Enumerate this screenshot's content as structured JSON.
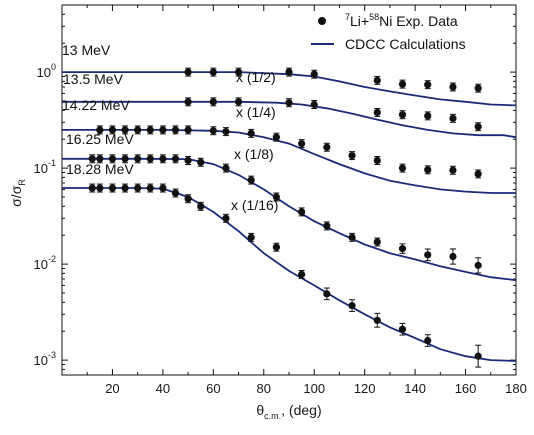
{
  "chart_data": {
    "type": "scatter",
    "xlabel": {
      "main": "θ",
      "sub": "c.m.",
      "suffix": ", (deg)"
    },
    "ylabel": {
      "main": "σ/σ",
      "sub": "R"
    },
    "xlim": [
      0,
      180
    ],
    "ylim": [
      0.0007,
      5
    ],
    "yscale": "log",
    "grid": false,
    "x_ticks": [
      "20",
      "40",
      "60",
      "80",
      "100",
      "120",
      "140",
      "160",
      "180"
    ],
    "y_ticks": [
      {
        "base": "10",
        "exp": "0"
      },
      {
        "base": "10",
        "exp": "-1"
      },
      {
        "base": "10",
        "exp": "-2"
      },
      {
        "base": "10",
        "exp": "-3"
      }
    ],
    "legend": {
      "position": "top-right",
      "entries": [
        {
          "kind": "marker",
          "parts": [
            {
              "t": "7",
              "sup": true
            },
            {
              "t": "Li+"
            },
            {
              "t": "58",
              "sup": true
            },
            {
              "t": "Ni Exp. Data"
            }
          ]
        },
        {
          "kind": "line",
          "parts": [
            {
              "t": "CDCC Calculations"
            }
          ]
        }
      ]
    },
    "series": [
      {
        "energy_label": "13 MeV",
        "scale_label": "",
        "points": [
          {
            "x": 50,
            "y": 1.0,
            "err": 0.1
          },
          {
            "x": 60,
            "y": 1.0,
            "err": 0.1
          },
          {
            "x": 70,
            "y": 1.0,
            "err": 0.1
          },
          {
            "x": 90,
            "y": 1.0,
            "err": 0.1
          },
          {
            "x": 100,
            "y": 0.95,
            "err": 0.1
          },
          {
            "x": 125,
            "y": 0.82,
            "err": 0.1
          },
          {
            "x": 135,
            "y": 0.75,
            "err": 0.1
          },
          {
            "x": 145,
            "y": 0.74,
            "err": 0.1
          },
          {
            "x": 155,
            "y": 0.7,
            "err": 0.1
          },
          {
            "x": 165,
            "y": 0.68,
            "err": 0.1
          }
        ],
        "curve": [
          [
            0,
            1.0
          ],
          [
            40,
            1.0
          ],
          [
            70,
            1.0
          ],
          [
            90,
            0.95
          ],
          [
            100,
            0.9
          ],
          [
            110,
            0.8
          ],
          [
            120,
            0.7
          ],
          [
            130,
            0.63
          ],
          [
            140,
            0.57
          ],
          [
            150,
            0.52
          ],
          [
            160,
            0.49
          ],
          [
            170,
            0.46
          ],
          [
            180,
            0.45
          ]
        ]
      },
      {
        "energy_label": "13.5 MeV",
        "scale_label": "x (1/2)",
        "points": [
          {
            "x": 50,
            "y": 0.49,
            "err": 0.1
          },
          {
            "x": 60,
            "y": 0.49,
            "err": 0.1
          },
          {
            "x": 70,
            "y": 0.49,
            "err": 0.1
          },
          {
            "x": 90,
            "y": 0.48,
            "err": 0.1
          },
          {
            "x": 100,
            "y": 0.46,
            "err": 0.1
          },
          {
            "x": 125,
            "y": 0.38,
            "err": 0.1
          },
          {
            "x": 135,
            "y": 0.36,
            "err": 0.1
          },
          {
            "x": 145,
            "y": 0.35,
            "err": 0.1
          },
          {
            "x": 155,
            "y": 0.33,
            "err": 0.1
          },
          {
            "x": 165,
            "y": 0.27,
            "err": 0.1
          }
        ],
        "curve": [
          [
            0,
            0.49
          ],
          [
            40,
            0.49
          ],
          [
            70,
            0.49
          ],
          [
            85,
            0.48
          ],
          [
            95,
            0.46
          ],
          [
            105,
            0.42
          ],
          [
            115,
            0.37
          ],
          [
            125,
            0.32
          ],
          [
            135,
            0.28
          ],
          [
            145,
            0.25
          ],
          [
            155,
            0.23
          ],
          [
            165,
            0.22
          ],
          [
            175,
            0.22
          ],
          [
            180,
            0.21
          ]
        ]
      },
      {
        "energy_label": "14.22 MeV",
        "scale_label": "x (1/4)",
        "points": [
          {
            "x": 15,
            "y": 0.25,
            "err": 0.1
          },
          {
            "x": 20,
            "y": 0.25,
            "err": 0.1
          },
          {
            "x": 25,
            "y": 0.25,
            "err": 0.1
          },
          {
            "x": 30,
            "y": 0.25,
            "err": 0.1
          },
          {
            "x": 35,
            "y": 0.25,
            "err": 0.1
          },
          {
            "x": 40,
            "y": 0.25,
            "err": 0.1
          },
          {
            "x": 45,
            "y": 0.25,
            "err": 0.1
          },
          {
            "x": 50,
            "y": 0.25,
            "err": 0.1
          },
          {
            "x": 60,
            "y": 0.245,
            "err": 0.1
          },
          {
            "x": 65,
            "y": 0.24,
            "err": 0.1
          },
          {
            "x": 75,
            "y": 0.23,
            "err": 0.1
          },
          {
            "x": 85,
            "y": 0.21,
            "err": 0.1
          },
          {
            "x": 95,
            "y": 0.18,
            "err": 0.1
          },
          {
            "x": 105,
            "y": 0.165,
            "err": 0.1
          },
          {
            "x": 115,
            "y": 0.135,
            "err": 0.1
          },
          {
            "x": 125,
            "y": 0.12,
            "err": 0.1
          },
          {
            "x": 135,
            "y": 0.1,
            "err": 0.1
          },
          {
            "x": 145,
            "y": 0.096,
            "err": 0.1
          },
          {
            "x": 155,
            "y": 0.095,
            "err": 0.1
          },
          {
            "x": 165,
            "y": 0.087,
            "err": 0.1
          }
        ],
        "curve": [
          [
            0,
            0.25
          ],
          [
            40,
            0.25
          ],
          [
            60,
            0.245
          ],
          [
            70,
            0.235
          ],
          [
            80,
            0.21
          ],
          [
            90,
            0.18
          ],
          [
            100,
            0.14
          ],
          [
            110,
            0.11
          ],
          [
            120,
            0.088
          ],
          [
            130,
            0.074
          ],
          [
            140,
            0.066
          ],
          [
            150,
            0.06
          ],
          [
            160,
            0.057
          ],
          [
            170,
            0.055
          ],
          [
            180,
            0.055
          ]
        ]
      },
      {
        "energy_label": "16.25 MeV",
        "scale_label": "x (1/8)",
        "points": [
          {
            "x": 12,
            "y": 0.125,
            "err": 0.1
          },
          {
            "x": 15,
            "y": 0.125,
            "err": 0.1
          },
          {
            "x": 20,
            "y": 0.125,
            "err": 0.1
          },
          {
            "x": 25,
            "y": 0.125,
            "err": 0.1
          },
          {
            "x": 30,
            "y": 0.125,
            "err": 0.1
          },
          {
            "x": 35,
            "y": 0.125,
            "err": 0.1
          },
          {
            "x": 40,
            "y": 0.125,
            "err": 0.1
          },
          {
            "x": 45,
            "y": 0.125,
            "err": 0.1
          },
          {
            "x": 50,
            "y": 0.12,
            "err": 0.1
          },
          {
            "x": 55,
            "y": 0.115,
            "err": 0.1
          },
          {
            "x": 65,
            "y": 0.1,
            "err": 0.1
          },
          {
            "x": 75,
            "y": 0.075,
            "err": 0.1
          },
          {
            "x": 85,
            "y": 0.05,
            "err": 0.1
          },
          {
            "x": 95,
            "y": 0.035,
            "err": 0.1
          },
          {
            "x": 105,
            "y": 0.025,
            "err": 0.1
          },
          {
            "x": 115,
            "y": 0.019,
            "err": 0.1
          },
          {
            "x": 125,
            "y": 0.017,
            "err": 0.1
          },
          {
            "x": 135,
            "y": 0.0145,
            "err": 0.12
          },
          {
            "x": 145,
            "y": 0.0125,
            "err": 0.15
          },
          {
            "x": 155,
            "y": 0.012,
            "err": 0.2
          },
          {
            "x": 165,
            "y": 0.0097,
            "err": 0.2
          }
        ],
        "curve": [
          [
            0,
            0.125
          ],
          [
            30,
            0.125
          ],
          [
            50,
            0.124
          ],
          [
            60,
            0.11
          ],
          [
            70,
            0.085
          ],
          [
            80,
            0.06
          ],
          [
            90,
            0.04
          ],
          [
            100,
            0.028
          ],
          [
            110,
            0.021
          ],
          [
            120,
            0.016
          ],
          [
            130,
            0.013
          ],
          [
            140,
            0.0112
          ],
          [
            150,
            0.0095
          ],
          [
            160,
            0.0083
          ],
          [
            170,
            0.0073
          ],
          [
            180,
            0.0068
          ]
        ]
      },
      {
        "energy_label": "18.28 MeV",
        "scale_label": "x (1/16)",
        "points": [
          {
            "x": 12,
            "y": 0.062,
            "err": 0.1
          },
          {
            "x": 15,
            "y": 0.062,
            "err": 0.1
          },
          {
            "x": 20,
            "y": 0.062,
            "err": 0.1
          },
          {
            "x": 25,
            "y": 0.062,
            "err": 0.1
          },
          {
            "x": 30,
            "y": 0.062,
            "err": 0.1
          },
          {
            "x": 35,
            "y": 0.062,
            "err": 0.1
          },
          {
            "x": 40,
            "y": 0.062,
            "err": 0.1
          },
          {
            "x": 45,
            "y": 0.055,
            "err": 0.1
          },
          {
            "x": 50,
            "y": 0.048,
            "err": 0.1
          },
          {
            "x": 55,
            "y": 0.04,
            "err": 0.1
          },
          {
            "x": 65,
            "y": 0.03,
            "err": 0.1
          },
          {
            "x": 75,
            "y": 0.019,
            "err": 0.1
          },
          {
            "x": 85,
            "y": 0.015,
            "err": 0.1
          },
          {
            "x": 95,
            "y": 0.0078,
            "err": 0.1
          },
          {
            "x": 105,
            "y": 0.0049,
            "err": 0.15
          },
          {
            "x": 115,
            "y": 0.0037,
            "err": 0.15
          },
          {
            "x": 125,
            "y": 0.0026,
            "err": 0.18
          },
          {
            "x": 135,
            "y": 0.0021,
            "err": 0.15
          },
          {
            "x": 145,
            "y": 0.0016,
            "err": 0.15
          },
          {
            "x": 165,
            "y": 0.0011,
            "err": 0.3
          }
        ],
        "curve": [
          [
            0,
            0.062
          ],
          [
            30,
            0.062
          ],
          [
            40,
            0.061
          ],
          [
            50,
            0.05
          ],
          [
            60,
            0.035
          ],
          [
            70,
            0.022
          ],
          [
            80,
            0.013
          ],
          [
            90,
            0.0085
          ],
          [
            100,
            0.006
          ],
          [
            110,
            0.0042
          ],
          [
            120,
            0.003
          ],
          [
            130,
            0.0022
          ],
          [
            140,
            0.0017
          ],
          [
            150,
            0.0013
          ],
          [
            160,
            0.0011
          ],
          [
            170,
            0.001
          ],
          [
            180,
            0.00098
          ]
        ]
      }
    ]
  }
}
